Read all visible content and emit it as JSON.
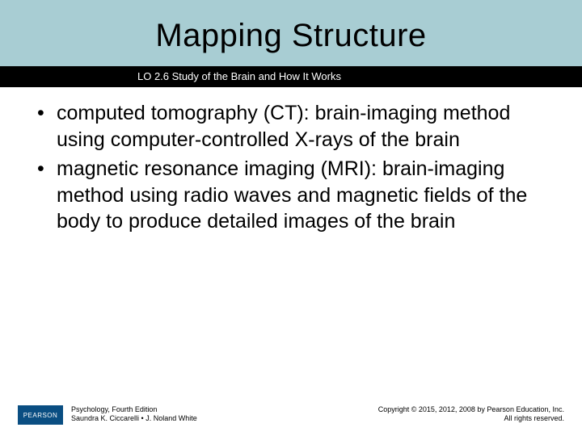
{
  "colors": {
    "header_band": "#a8cdd3",
    "black_strip": "#000000",
    "title_text": "#000000",
    "subtitle_text": "#ffffff",
    "body_text": "#000000",
    "footer_logo_bg": "#0a4e82",
    "footer_logo_text": "#ffffff",
    "background": "#ffffff"
  },
  "typography": {
    "title_fontsize": 40,
    "subtitle_fontsize": 13,
    "body_fontsize": 25,
    "footer_fontsize": 9,
    "font_family": "Arial"
  },
  "header": {
    "title": "Mapping Structure",
    "subtitle": "LO 2.6 Study of the Brain and How It Works"
  },
  "bullets": [
    "computed tomography (CT): brain-imaging method using computer-controlled X-rays of the brain",
    "magnetic resonance imaging (MRI): brain-imaging method using radio waves and magnetic fields of the body to produce detailed images of the brain"
  ],
  "footer": {
    "logo_text": "PEARSON",
    "left_line1": "Psychology, Fourth Edition",
    "left_line2": "Saundra K. Ciccarelli • J. Noland White",
    "right_line1": "Copyright © 2015, 2012, 2008 by Pearson Education, Inc.",
    "right_line2": "All rights reserved."
  }
}
